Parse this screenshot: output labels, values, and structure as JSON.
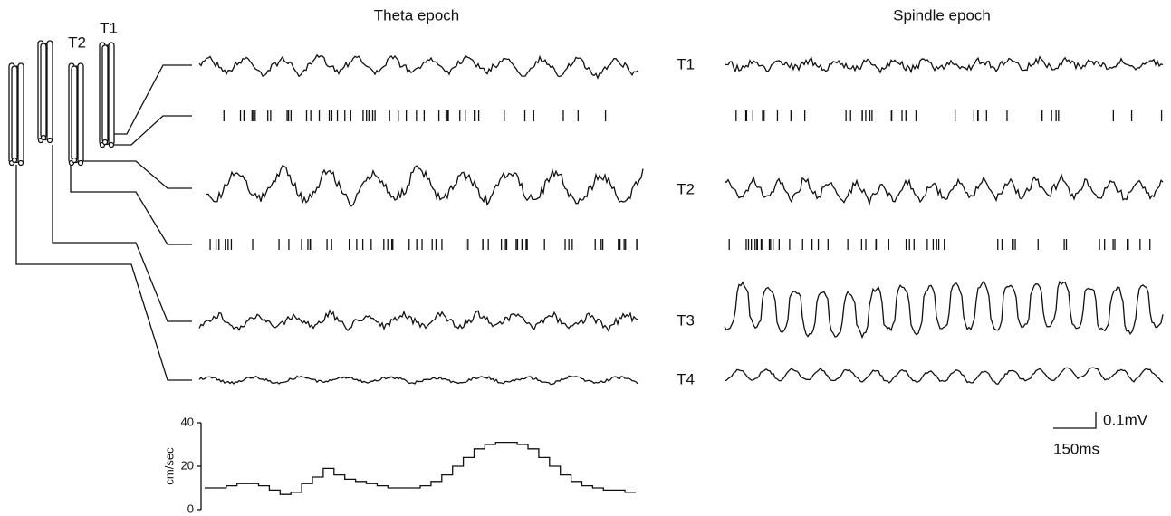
{
  "titles": {
    "theta": "Theta epoch",
    "spindle": "Spindle epoch"
  },
  "probe_labels": [
    "T1",
    "T2"
  ],
  "trace_labels": [
    "T1",
    "T2",
    "T3",
    "T4"
  ],
  "scale_bar": {
    "voltage": "0.1mV",
    "time": "150ms"
  },
  "chart_data": {
    "type": "line",
    "ylabel": "cm/sec",
    "ylim": [
      0,
      40
    ],
    "yticks": [
      0,
      20,
      40
    ],
    "color": "#111111",
    "values": [
      10,
      10,
      11,
      12,
      12,
      11,
      9,
      7,
      8,
      12,
      15,
      19,
      16,
      14,
      13,
      12,
      11,
      10,
      10,
      10,
      11,
      13,
      16,
      20,
      24,
      28,
      30,
      31,
      31,
      30,
      28,
      24,
      20,
      16,
      13,
      11,
      10,
      9,
      9,
      8
    ]
  }
}
